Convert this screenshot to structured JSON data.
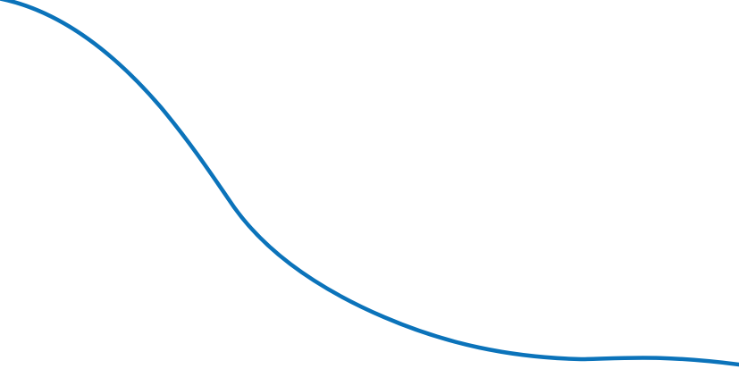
{
  "graphic": {
    "background_color": "#ffffff",
    "curve_color": "#0b73ba"
  }
}
